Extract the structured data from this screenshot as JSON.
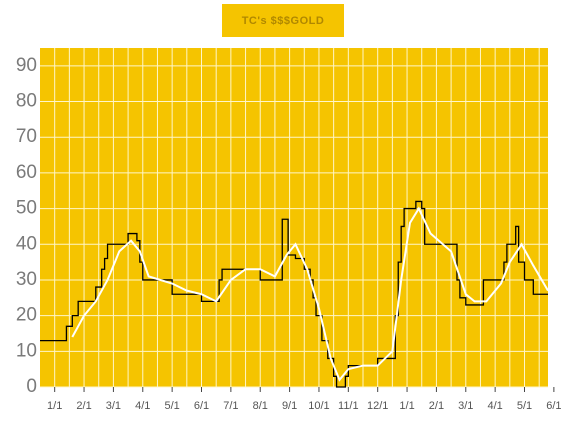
{
  "chart_data": {
    "type": "line",
    "title": "TC's $$$GOLD",
    "xlim": [
      -0.5,
      16.8
    ],
    "ylim": [
      0,
      95
    ],
    "yticks": [
      0,
      10,
      20,
      30,
      40,
      50,
      60,
      70,
      80,
      90
    ],
    "xticks": [
      {
        "value": 0,
        "label": "1/1"
      },
      {
        "value": 1,
        "label": "2/1"
      },
      {
        "value": 2,
        "label": "3/1"
      },
      {
        "value": 3,
        "label": "4/1"
      },
      {
        "value": 4,
        "label": "5/1"
      },
      {
        "value": 5,
        "label": "6/1"
      },
      {
        "value": 6,
        "label": "7/1"
      },
      {
        "value": 7,
        "label": "8/1"
      },
      {
        "value": 8,
        "label": "9/1"
      },
      {
        "value": 9,
        "label": "10/1"
      },
      {
        "value": 10,
        "label": "11/1"
      },
      {
        "value": 11,
        "label": "12/1"
      },
      {
        "value": 12,
        "label": "1/1"
      },
      {
        "value": 13,
        "label": "2/1"
      },
      {
        "value": 14,
        "label": "3/1"
      },
      {
        "value": 15,
        "label": "4/1"
      },
      {
        "value": 16,
        "label": "5/1"
      },
      {
        "value": 17,
        "label": "6/1"
      }
    ],
    "grid": true,
    "background": "#f5c400",
    "series": [
      {
        "color": "#000000",
        "step": true,
        "x": [
          -0.5,
          0.4,
          0.6,
          0.8,
          1.4,
          1.6,
          1.7,
          1.8,
          2.5,
          2.8,
          2.9,
          3.0,
          4.0,
          5.0,
          5.6,
          5.7,
          7.0,
          7.75,
          7.95,
          8.2,
          8.5,
          8.7,
          8.8,
          8.9,
          9.1,
          9.3,
          9.5,
          9.6,
          9.9,
          10.0,
          11.0,
          11.6,
          11.7,
          11.8,
          11.9,
          12.3,
          12.5,
          12.6,
          13.7,
          13.8,
          14.0,
          14.6,
          15.3,
          15.4,
          15.7,
          15.8,
          16.0,
          16.3,
          16.8
        ],
        "values": [
          13,
          17,
          20,
          24,
          28,
          33,
          36,
          40,
          43,
          41,
          35,
          30,
          26,
          24,
          30,
          33,
          30,
          47,
          37,
          36,
          33,
          30,
          25,
          20,
          13,
          8,
          3,
          0,
          3,
          6,
          8,
          20,
          35,
          45,
          50,
          52,
          50,
          40,
          30,
          25,
          23,
          30,
          35,
          40,
          45,
          35,
          30,
          26,
          26
        ]
      },
      {
        "color": "#ffffff",
        "step": false,
        "x": [
          0.6,
          1.0,
          1.4,
          1.8,
          2.2,
          2.6,
          2.9,
          3.2,
          4.0,
          4.5,
          5.0,
          5.5,
          6.0,
          6.5,
          7.0,
          7.5,
          7.9,
          8.2,
          8.6,
          9.0,
          9.4,
          9.7,
          10.0,
          10.5,
          11.0,
          11.5,
          11.8,
          12.1,
          12.4,
          12.8,
          13.5,
          14.0,
          14.3,
          14.7,
          15.2,
          15.5,
          15.9,
          16.3,
          16.8
        ],
        "values": [
          14,
          20,
          24,
          30,
          38,
          41,
          38,
          31,
          29,
          27,
          26,
          24,
          30,
          33,
          33,
          31,
          37,
          40,
          33,
          22,
          8,
          2,
          5,
          6,
          6,
          10,
          30,
          46,
          50,
          43,
          38,
          26,
          24,
          24,
          29,
          35,
          40,
          34,
          27
        ]
      }
    ]
  }
}
